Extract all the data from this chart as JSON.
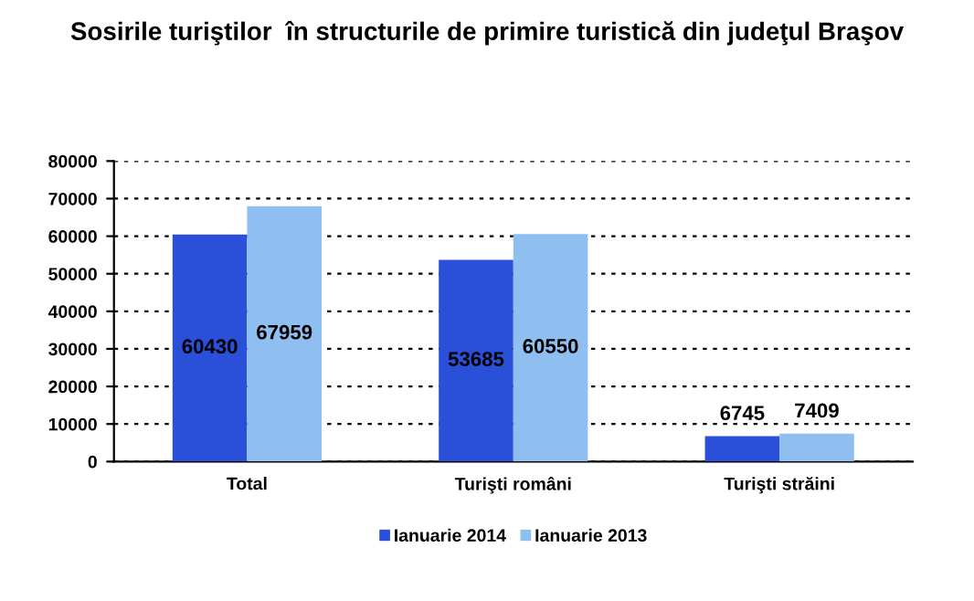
{
  "chart_data": {
    "type": "bar",
    "title": "Sosirile turiştilor  în structurile de primire turistică din judeţul Braşov",
    "categories": [
      "Total",
      "Turişti români",
      "Turişti străini"
    ],
    "series": [
      {
        "name": "Ianuarie 2014",
        "color": "#2a4fd8",
        "values": [
          60430,
          53685,
          6745
        ]
      },
      {
        "name": "Ianuarie 2013",
        "color": "#8fbff0",
        "values": [
          67959,
          60550,
          7409
        ]
      }
    ],
    "ylim": [
      0,
      80000
    ],
    "yticks": [
      0,
      10000,
      20000,
      30000,
      40000,
      50000,
      60000,
      70000,
      80000
    ],
    "grid": "y",
    "legend": "bottom",
    "data_labels": true
  }
}
